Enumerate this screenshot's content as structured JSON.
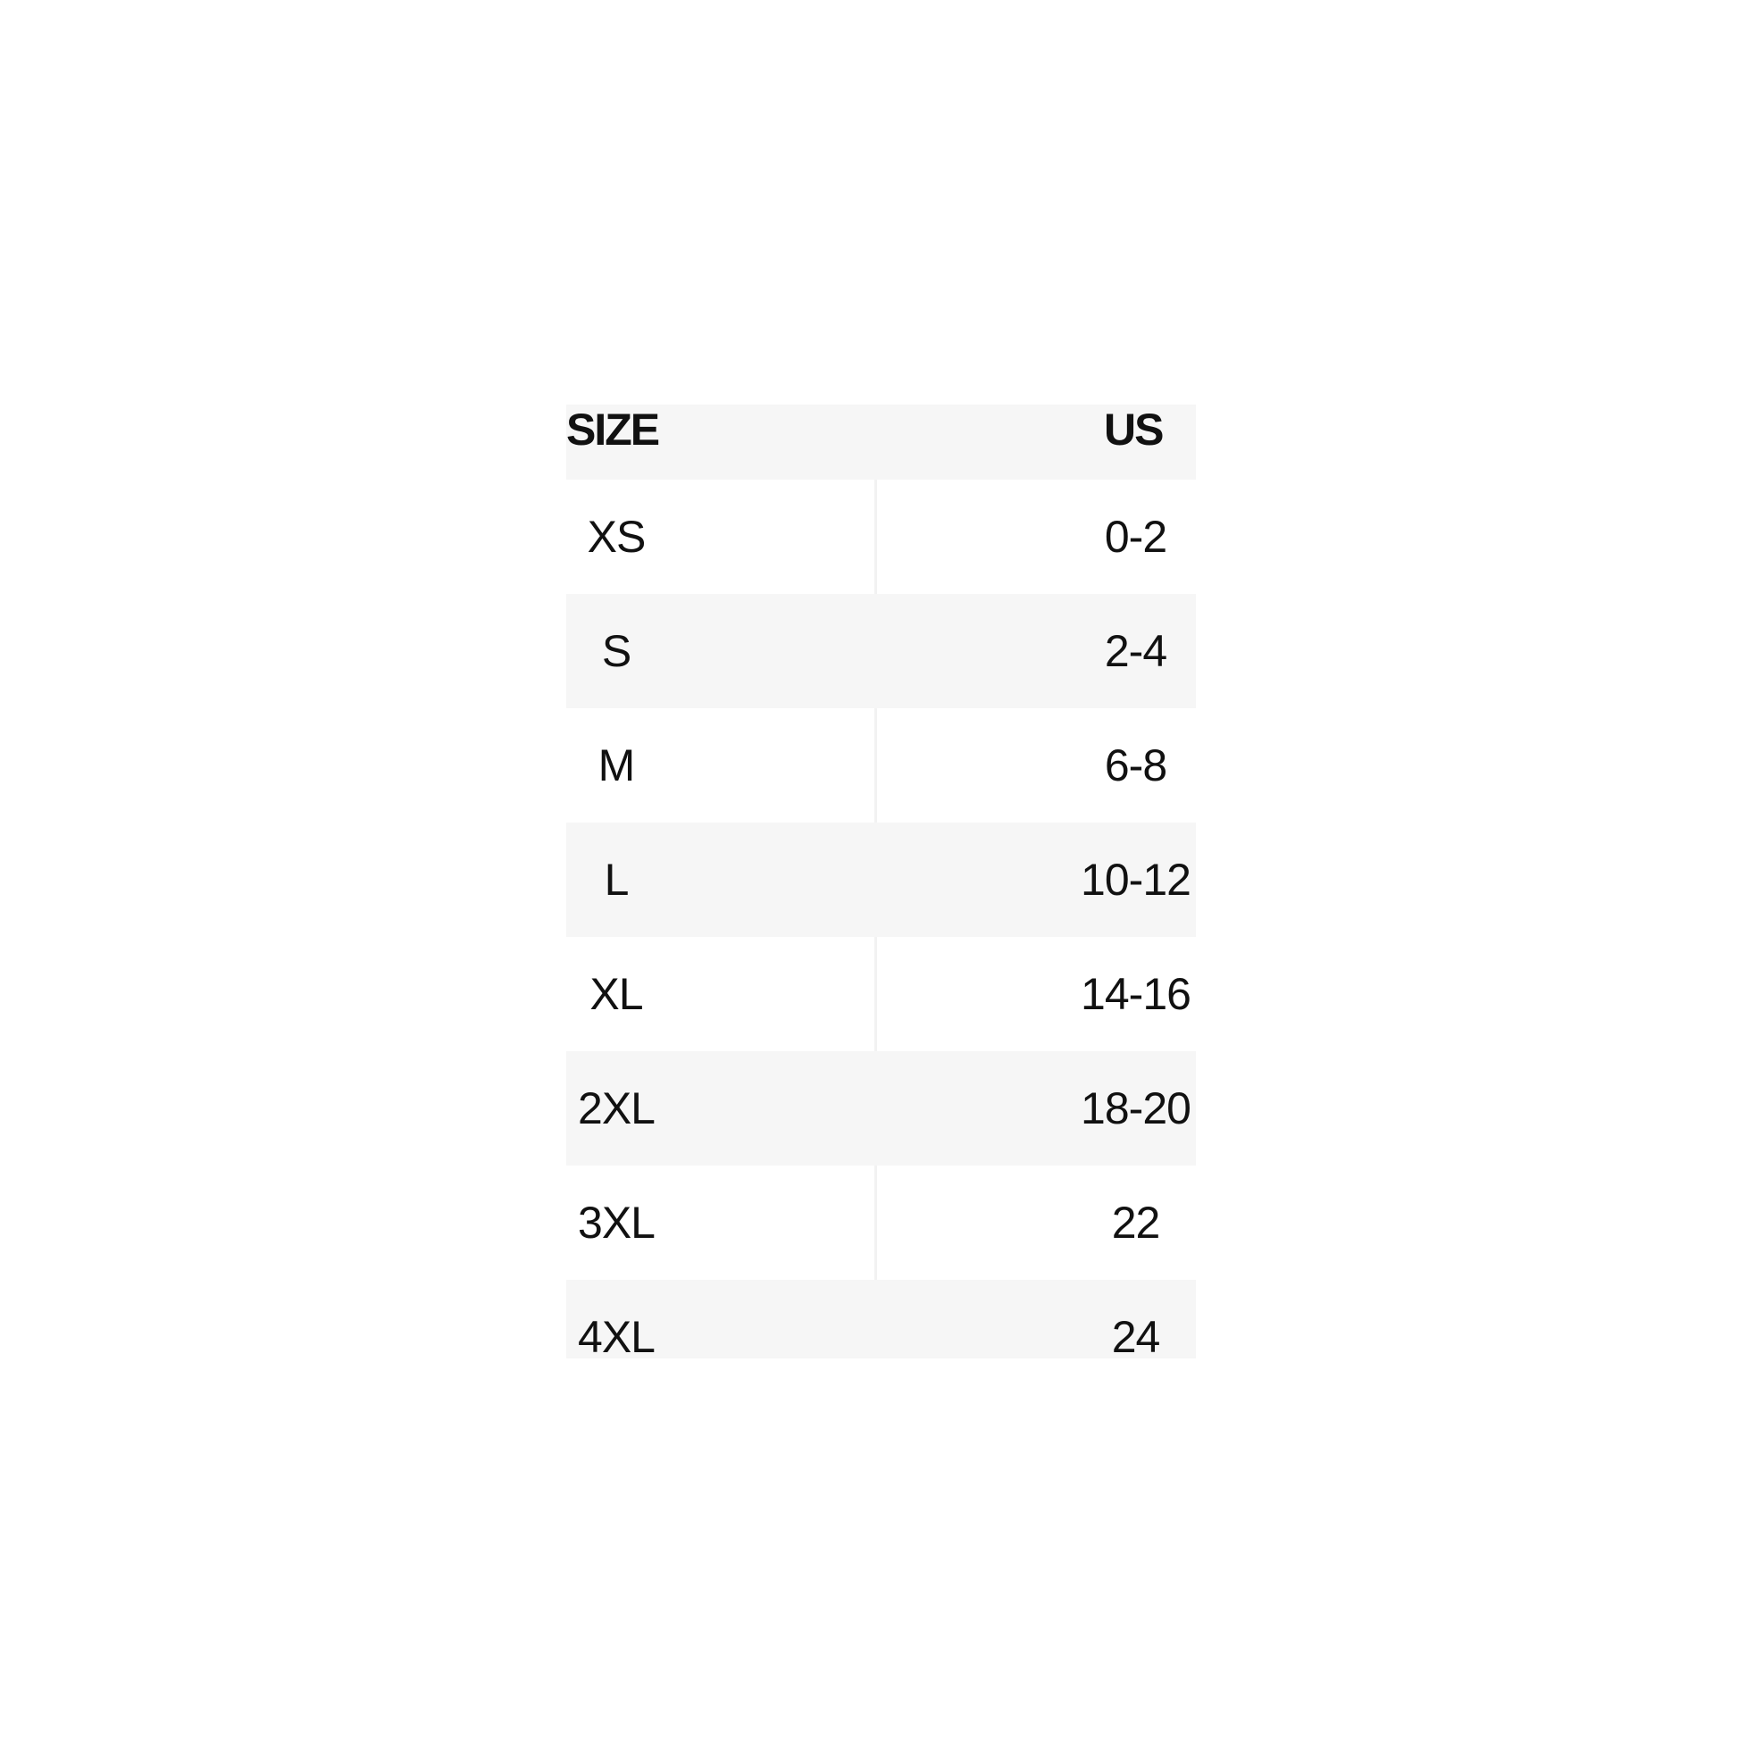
{
  "table": {
    "headers": [
      "SIZE",
      "US"
    ],
    "rows": [
      [
        "XS",
        "0-2"
      ],
      [
        "S",
        "2-4"
      ],
      [
        "M",
        "6-8"
      ],
      [
        "L",
        "10-12"
      ],
      [
        "XL",
        "14-16"
      ],
      [
        "2XL",
        "18-20"
      ],
      [
        "3XL",
        "22"
      ],
      [
        "4XL",
        "24"
      ]
    ]
  },
  "colors": {
    "stripe": "#f6f6f6",
    "text": "#111111"
  }
}
